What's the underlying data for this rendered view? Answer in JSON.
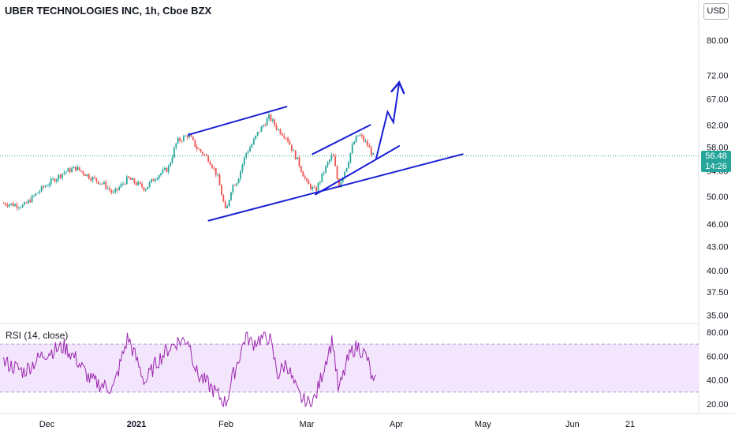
{
  "header": {
    "title": "UBER TECHNOLOGIES INC, 1h, Cboe BZX",
    "currency": "USD"
  },
  "price_badge": {
    "price": "56.48",
    "countdown": "14:26"
  },
  "rsi_panel": {
    "label": "RSI (14, close)"
  },
  "colors": {
    "up": "#26a69a",
    "down": "#ef5350",
    "drawing": "#1a1fd6",
    "rsi_line": "#9c27b0",
    "rsi_band": "#f3e5fb",
    "last_price_line": "#26a69a"
  },
  "chart_data": [
    {
      "type": "candlestick",
      "title": "UBER TECHNOLOGIES INC, 1h, Cboe BZX",
      "y_scale": "log",
      "y_ticks": [
        80.0,
        72.0,
        67.0,
        62.0,
        58.0,
        54.0,
        50.0,
        46.0,
        43.0,
        40.0,
        37.5,
        35.0
      ],
      "y_tick_labels": [
        "80.00",
        "72.00",
        "67.00",
        "62.00",
        "58.00",
        "54.00",
        "50.00",
        "46.00",
        "43.00",
        "40.00",
        "37.50",
        "35.00"
      ],
      "x_tick_labels": [
        "Dec",
        "2021",
        "Feb",
        "Mar",
        "Apr",
        "May",
        "Jun",
        "21"
      ],
      "x_tick_dates": [
        "2020-12-01",
        "2021-01-01",
        "2021-02-01",
        "2021-03-01",
        "2021-04-01",
        "2021-05-01",
        "2021-06-01",
        "2021-06-21"
      ],
      "last_price": 56.48,
      "price_path": [
        [
          "2020-11-16",
          49.0
        ],
        [
          "2020-11-23",
          48.6
        ],
        [
          "2020-11-30",
          51.5
        ],
        [
          "2020-12-07",
          53.8
        ],
        [
          "2020-12-11",
          54.5
        ],
        [
          "2020-12-16",
          53.0
        ],
        [
          "2020-12-21",
          51.8
        ],
        [
          "2020-12-24",
          50.4
        ],
        [
          "2020-12-29",
          52.8
        ],
        [
          "2021-01-04",
          51.2
        ],
        [
          "2021-01-08",
          53.2
        ],
        [
          "2021-01-12",
          54.4
        ],
        [
          "2021-01-15",
          59.0
        ],
        [
          "2021-01-19",
          60.2
        ],
        [
          "2021-01-22",
          57.8
        ],
        [
          "2021-01-26",
          56.0
        ],
        [
          "2021-01-29",
          53.2
        ],
        [
          "2021-02-01",
          47.5
        ],
        [
          "2021-02-03",
          51.5
        ],
        [
          "2021-02-05",
          52.5
        ],
        [
          "2021-02-08",
          57.0
        ],
        [
          "2021-02-10",
          58.5
        ],
        [
          "2021-02-12",
          60.5
        ],
        [
          "2021-02-16",
          63.5
        ],
        [
          "2021-02-19",
          61.2
        ],
        [
          "2021-02-22",
          59.8
        ],
        [
          "2021-02-24",
          57.5
        ],
        [
          "2021-02-26",
          55.5
        ],
        [
          "2021-03-01",
          52.0
        ],
        [
          "2021-03-04",
          50.8
        ],
        [
          "2021-03-08",
          55.0
        ],
        [
          "2021-03-10",
          56.8
        ],
        [
          "2021-03-12",
          51.5
        ],
        [
          "2021-03-15",
          55.0
        ],
        [
          "2021-03-17",
          58.5
        ],
        [
          "2021-03-19",
          60.3
        ],
        [
          "2021-03-22",
          58.4
        ],
        [
          "2021-03-24",
          56.48
        ]
      ],
      "annotations": {
        "channel_1": [
          [
            "2021-01-19",
            60.2
          ],
          [
            "2021-02-22",
            65.5
          ]
        ],
        "lower_trendline": [
          [
            "2021-01-26",
            46.5
          ],
          [
            "2021-04-24",
            56.8
          ]
        ],
        "channel_2_upper": [
          [
            "2021-03-03",
            56.8
          ],
          [
            "2021-03-23",
            62.0
          ]
        ],
        "channel_2_lower": [
          [
            "2021-03-04",
            50.3
          ],
          [
            "2021-04-02",
            58.2
          ]
        ],
        "projection_arrow": [
          [
            "2021-03-25",
            56.0
          ],
          [
            "2021-03-29",
            64.5
          ],
          [
            "2021-03-31",
            62.5
          ],
          [
            "2021-04-02",
            70.5
          ]
        ]
      }
    },
    {
      "type": "line",
      "title": "RSI (14, close)",
      "y_ticks": [
        80.0,
        60.0,
        40.0,
        20.0
      ],
      "y_tick_labels": [
        "80.00",
        "60.00",
        "40.00",
        "20.00"
      ],
      "bands": [
        70,
        30
      ],
      "rsi_path": [
        [
          "2020-11-16",
          55
        ],
        [
          "2020-11-23",
          47
        ],
        [
          "2020-11-30",
          62
        ],
        [
          "2020-12-07",
          68
        ],
        [
          "2020-12-11",
          58
        ],
        [
          "2020-12-16",
          40
        ],
        [
          "2020-12-21",
          35
        ],
        [
          "2020-12-24",
          33
        ],
        [
          "2020-12-29",
          76
        ],
        [
          "2021-01-04",
          38
        ],
        [
          "2021-01-08",
          55
        ],
        [
          "2021-01-12",
          66
        ],
        [
          "2021-01-15",
          72
        ],
        [
          "2021-01-19",
          74
        ],
        [
          "2021-01-22",
          45
        ],
        [
          "2021-01-26",
          36
        ],
        [
          "2021-01-29",
          28
        ],
        [
          "2021-02-01",
          20
        ],
        [
          "2021-02-03",
          40
        ],
        [
          "2021-02-05",
          55
        ],
        [
          "2021-02-08",
          78
        ],
        [
          "2021-02-10",
          70
        ],
        [
          "2021-02-12",
          74
        ],
        [
          "2021-02-16",
          76
        ],
        [
          "2021-02-19",
          44
        ],
        [
          "2021-02-22",
          55
        ],
        [
          "2021-02-24",
          40
        ],
        [
          "2021-02-26",
          28
        ],
        [
          "2021-03-01",
          20
        ],
        [
          "2021-03-04",
          25
        ],
        [
          "2021-03-08",
          60
        ],
        [
          "2021-03-10",
          74
        ],
        [
          "2021-03-12",
          30
        ],
        [
          "2021-03-15",
          55
        ],
        [
          "2021-03-17",
          66
        ],
        [
          "2021-03-19",
          68
        ],
        [
          "2021-03-22",
          58
        ],
        [
          "2021-03-24",
          36
        ],
        [
          "2021-03-25",
          38
        ]
      ]
    }
  ]
}
